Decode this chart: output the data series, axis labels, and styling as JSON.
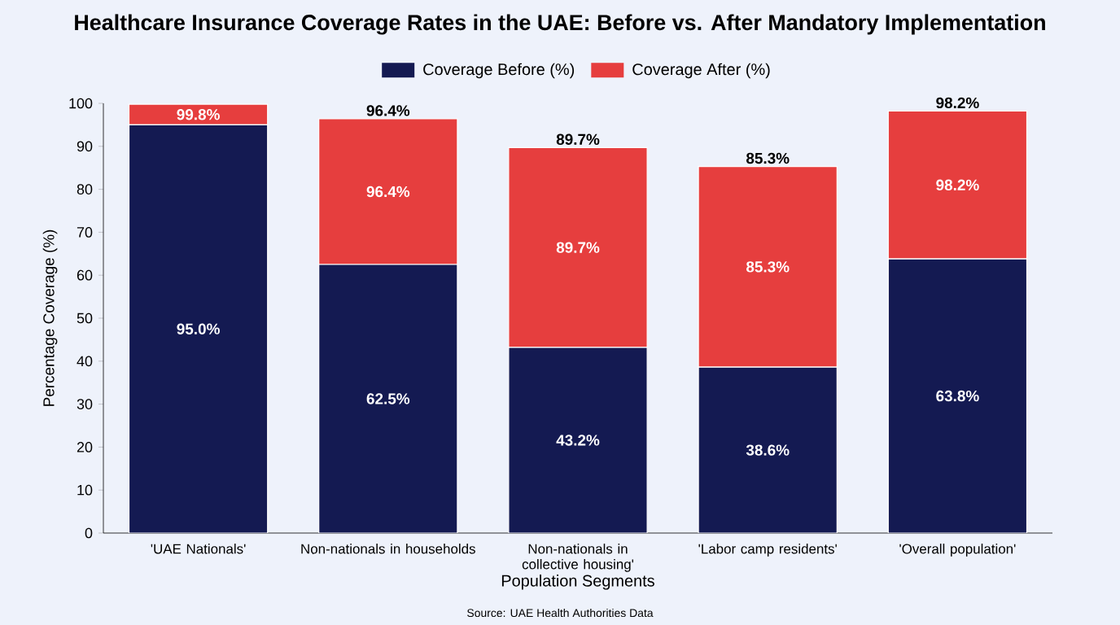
{
  "chart_data": {
    "type": "bar",
    "title": "Healthcare Insurance Coverage Rates in the UAE: Before vs. After Mandatory Implementation",
    "xlabel": "Population Segments",
    "ylabel": "Percentage Coverage (%)",
    "annotations": [
      "Source: UAE Health Authorities Data",
      "99.8%",
      "96.4%",
      "89.7%",
      "85.3%",
      "98.2%"
    ],
    "categories": [
      "'UAE Nationals'",
      "Non-nationals in households",
      "Non-nationals in collective housing'",
      "'Labor camp residents'",
      "'Overall population'"
    ],
    "stacked": true,
    "legend": "top",
    "ylim": [
      0,
      100
    ],
    "yticks": [
      0,
      10,
      20,
      30,
      40,
      50,
      60,
      70,
      80,
      90,
      100
    ],
    "series": [
      {
        "name": "Coverage Before (%)",
        "color": "#141a52",
        "values": [
          95.0,
          62.5,
          43.2,
          38.6,
          63.8
        ],
        "value_labels": [
          "95.0%",
          "62.5%",
          "43.2%",
          "38.6%",
          "63.8%"
        ]
      },
      {
        "name": "Coverage After (%)",
        "color": "#e63e3e",
        "values": [
          4.8,
          33.9,
          46.5,
          46.7,
          34.4
        ]
      }
    ],
    "totals": [
      null,
      "96.4%",
      "89.7%",
      "85.3%",
      "98.2%"
    ]
  }
}
